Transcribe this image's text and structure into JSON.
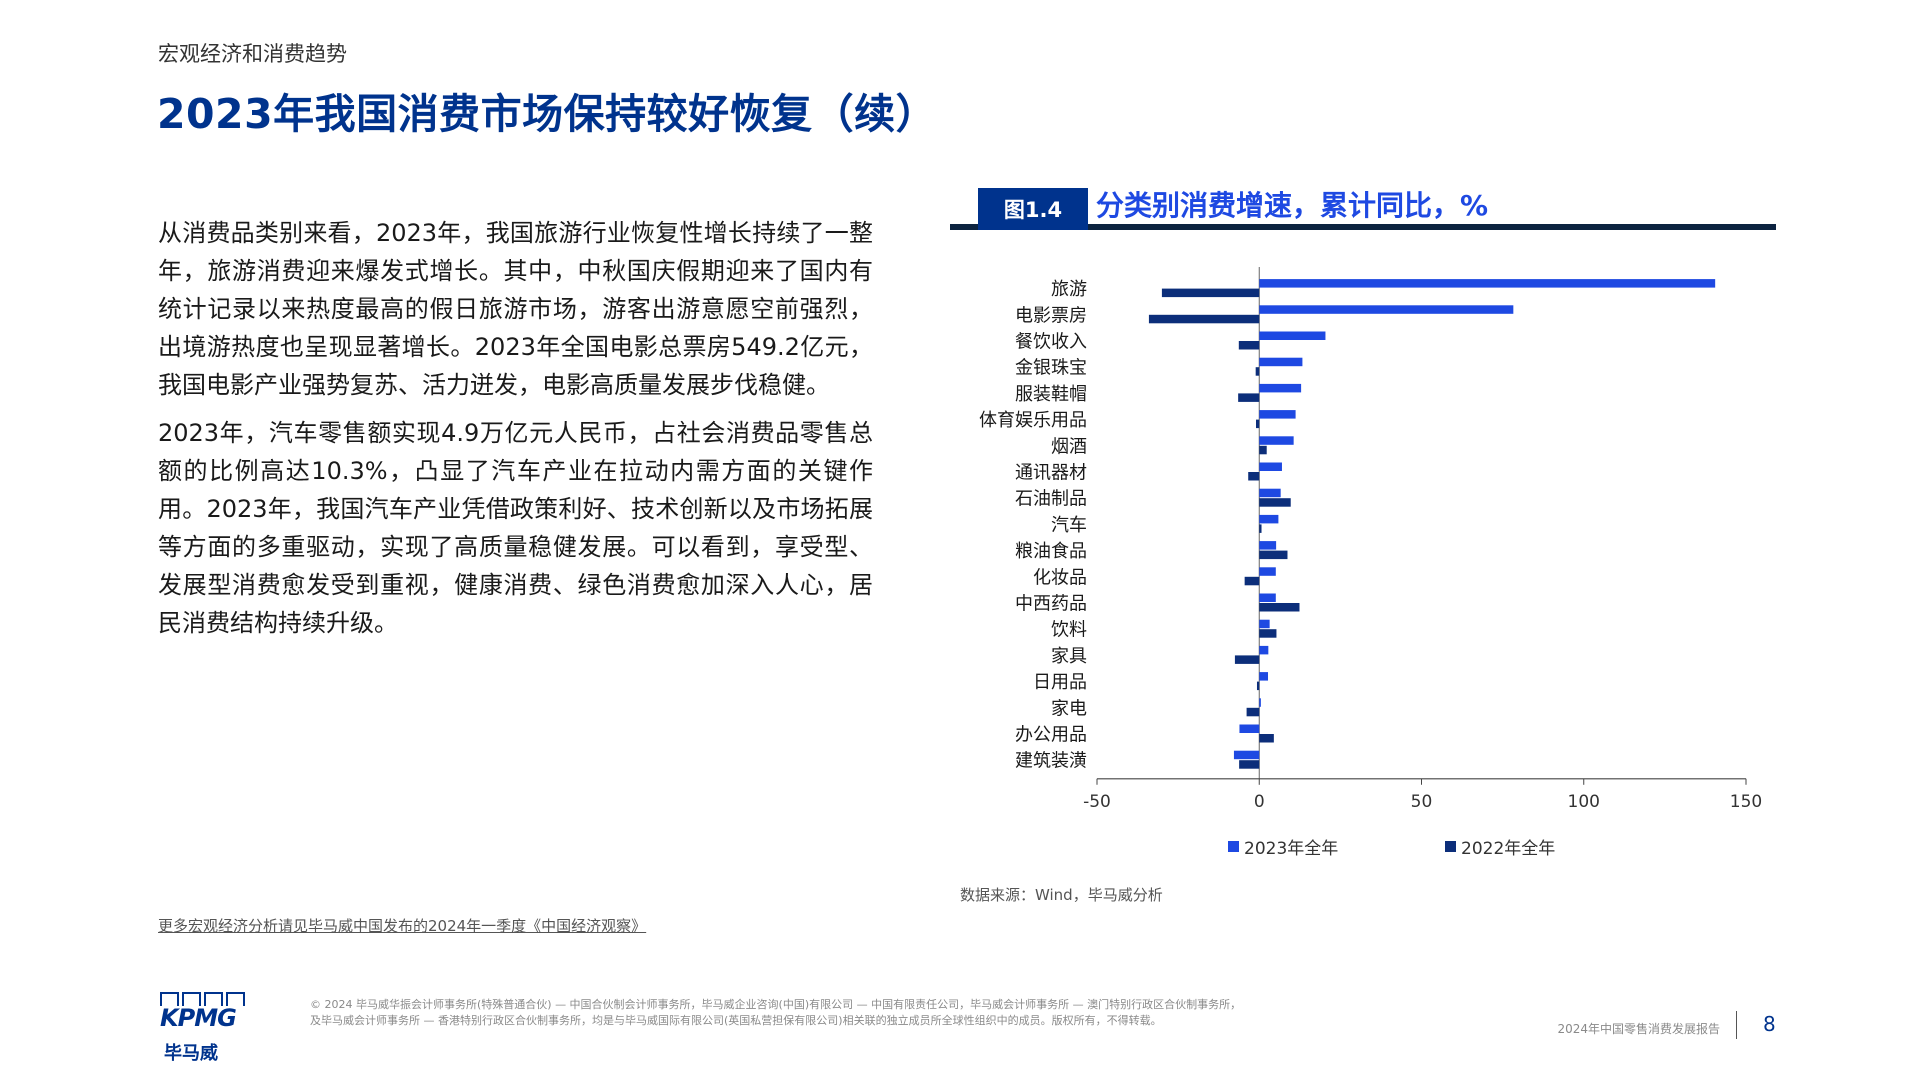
{
  "header": {
    "section": "宏观经济和消费趋势",
    "title": "2023年我国消费市场保持较好恢复（续）"
  },
  "body": {
    "paragraphs": [
      "从消费品类别来看，2023年，我国旅游行业恢复性增长持续了一整年，旅游消费迎来爆发式增长。其中，中秋国庆假期迎来了国内有统计记录以来热度最高的假日旅游市场，游客出游意愿空前强烈，出境游热度也呈现显著增长。2023年全国电影总票房549.2亿元，我国电影产业强势复苏、活力迸发，电影高质量发展步伐稳健。",
      "2023年，汽车零售额实现4.9万亿元人民币，占社会消费品零售总额的比例高达10.3%，凸显了汽车产业在拉动内需方面的关键作用。2023年，我国汽车产业凭借政策利好、技术创新以及市场拓展等方面的多重驱动，实现了高质量稳健发展。可以看到，享受型、发展型消费愈发受到重视，健康消费、绿色消费愈加深入人心，居民消费结构持续升级。"
    ]
  },
  "figure": {
    "badge": "图1.4",
    "title": "分类别消费增速，累计同比，%",
    "source": "数据来源：Wind，毕马威分析"
  },
  "chart_data": {
    "type": "bar",
    "orientation": "horizontal",
    "categories": [
      "旅游",
      "电影票房",
      "餐饮收入",
      "金银珠宝",
      "服装鞋帽",
      "体育娱乐用品",
      "烟酒",
      "通讯器材",
      "石油制品",
      "汽车",
      "粮油食品",
      "化妆品",
      "中西药品",
      "饮料",
      "家具",
      "日用品",
      "家电",
      "办公用品",
      "建筑装潢"
    ],
    "series": [
      {
        "name": "2023年全年",
        "color": "#1E49E2",
        "values": [
          140.5,
          78.3,
          20.4,
          13.3,
          12.9,
          11.2,
          10.6,
          7.0,
          6.6,
          5.9,
          5.2,
          5.1,
          5.1,
          3.2,
          2.8,
          2.7,
          0.5,
          -6.1,
          -7.8
        ]
      },
      {
        "name": "2022年全年",
        "color": "#0C2E7A",
        "values": [
          -30.0,
          -34.0,
          -6.3,
          -1.1,
          -6.5,
          -1.0,
          2.3,
          -3.4,
          9.7,
          0.7,
          8.7,
          -4.5,
          12.4,
          5.3,
          -7.5,
          -0.7,
          -3.9,
          4.5,
          -6.2
        ]
      }
    ],
    "xlim": [
      -50,
      150
    ],
    "xticks": [
      -50,
      0,
      50,
      100,
      150
    ],
    "legend": "bottom"
  },
  "footer": {
    "more_link": "更多宏观经济分析请见毕马威中国发布的2024年一季度《中国经济观察》",
    "logo_text": "KPMG",
    "logo_cn": "毕马威",
    "disclaimer_1": "© 2024 毕马威华振会计师事务所(特殊普通合伙) — 中国合伙制会计师事务所，毕马威企业咨询(中国)有限公司 — 中国有限责任公司，毕马威会计师事务所 — 澳门特别行政区合伙制事务所，",
    "disclaimer_2": "及毕马威会计师事务所 — 香港特别行政区合伙制事务所，均是与毕马威国际有限公司(英国私营担保有限公司)相关联的独立成员所全球性组织中的成员。版权所有，不得转载。",
    "report_name": "2024年中国零售消费发展报告",
    "page_number": "8"
  }
}
